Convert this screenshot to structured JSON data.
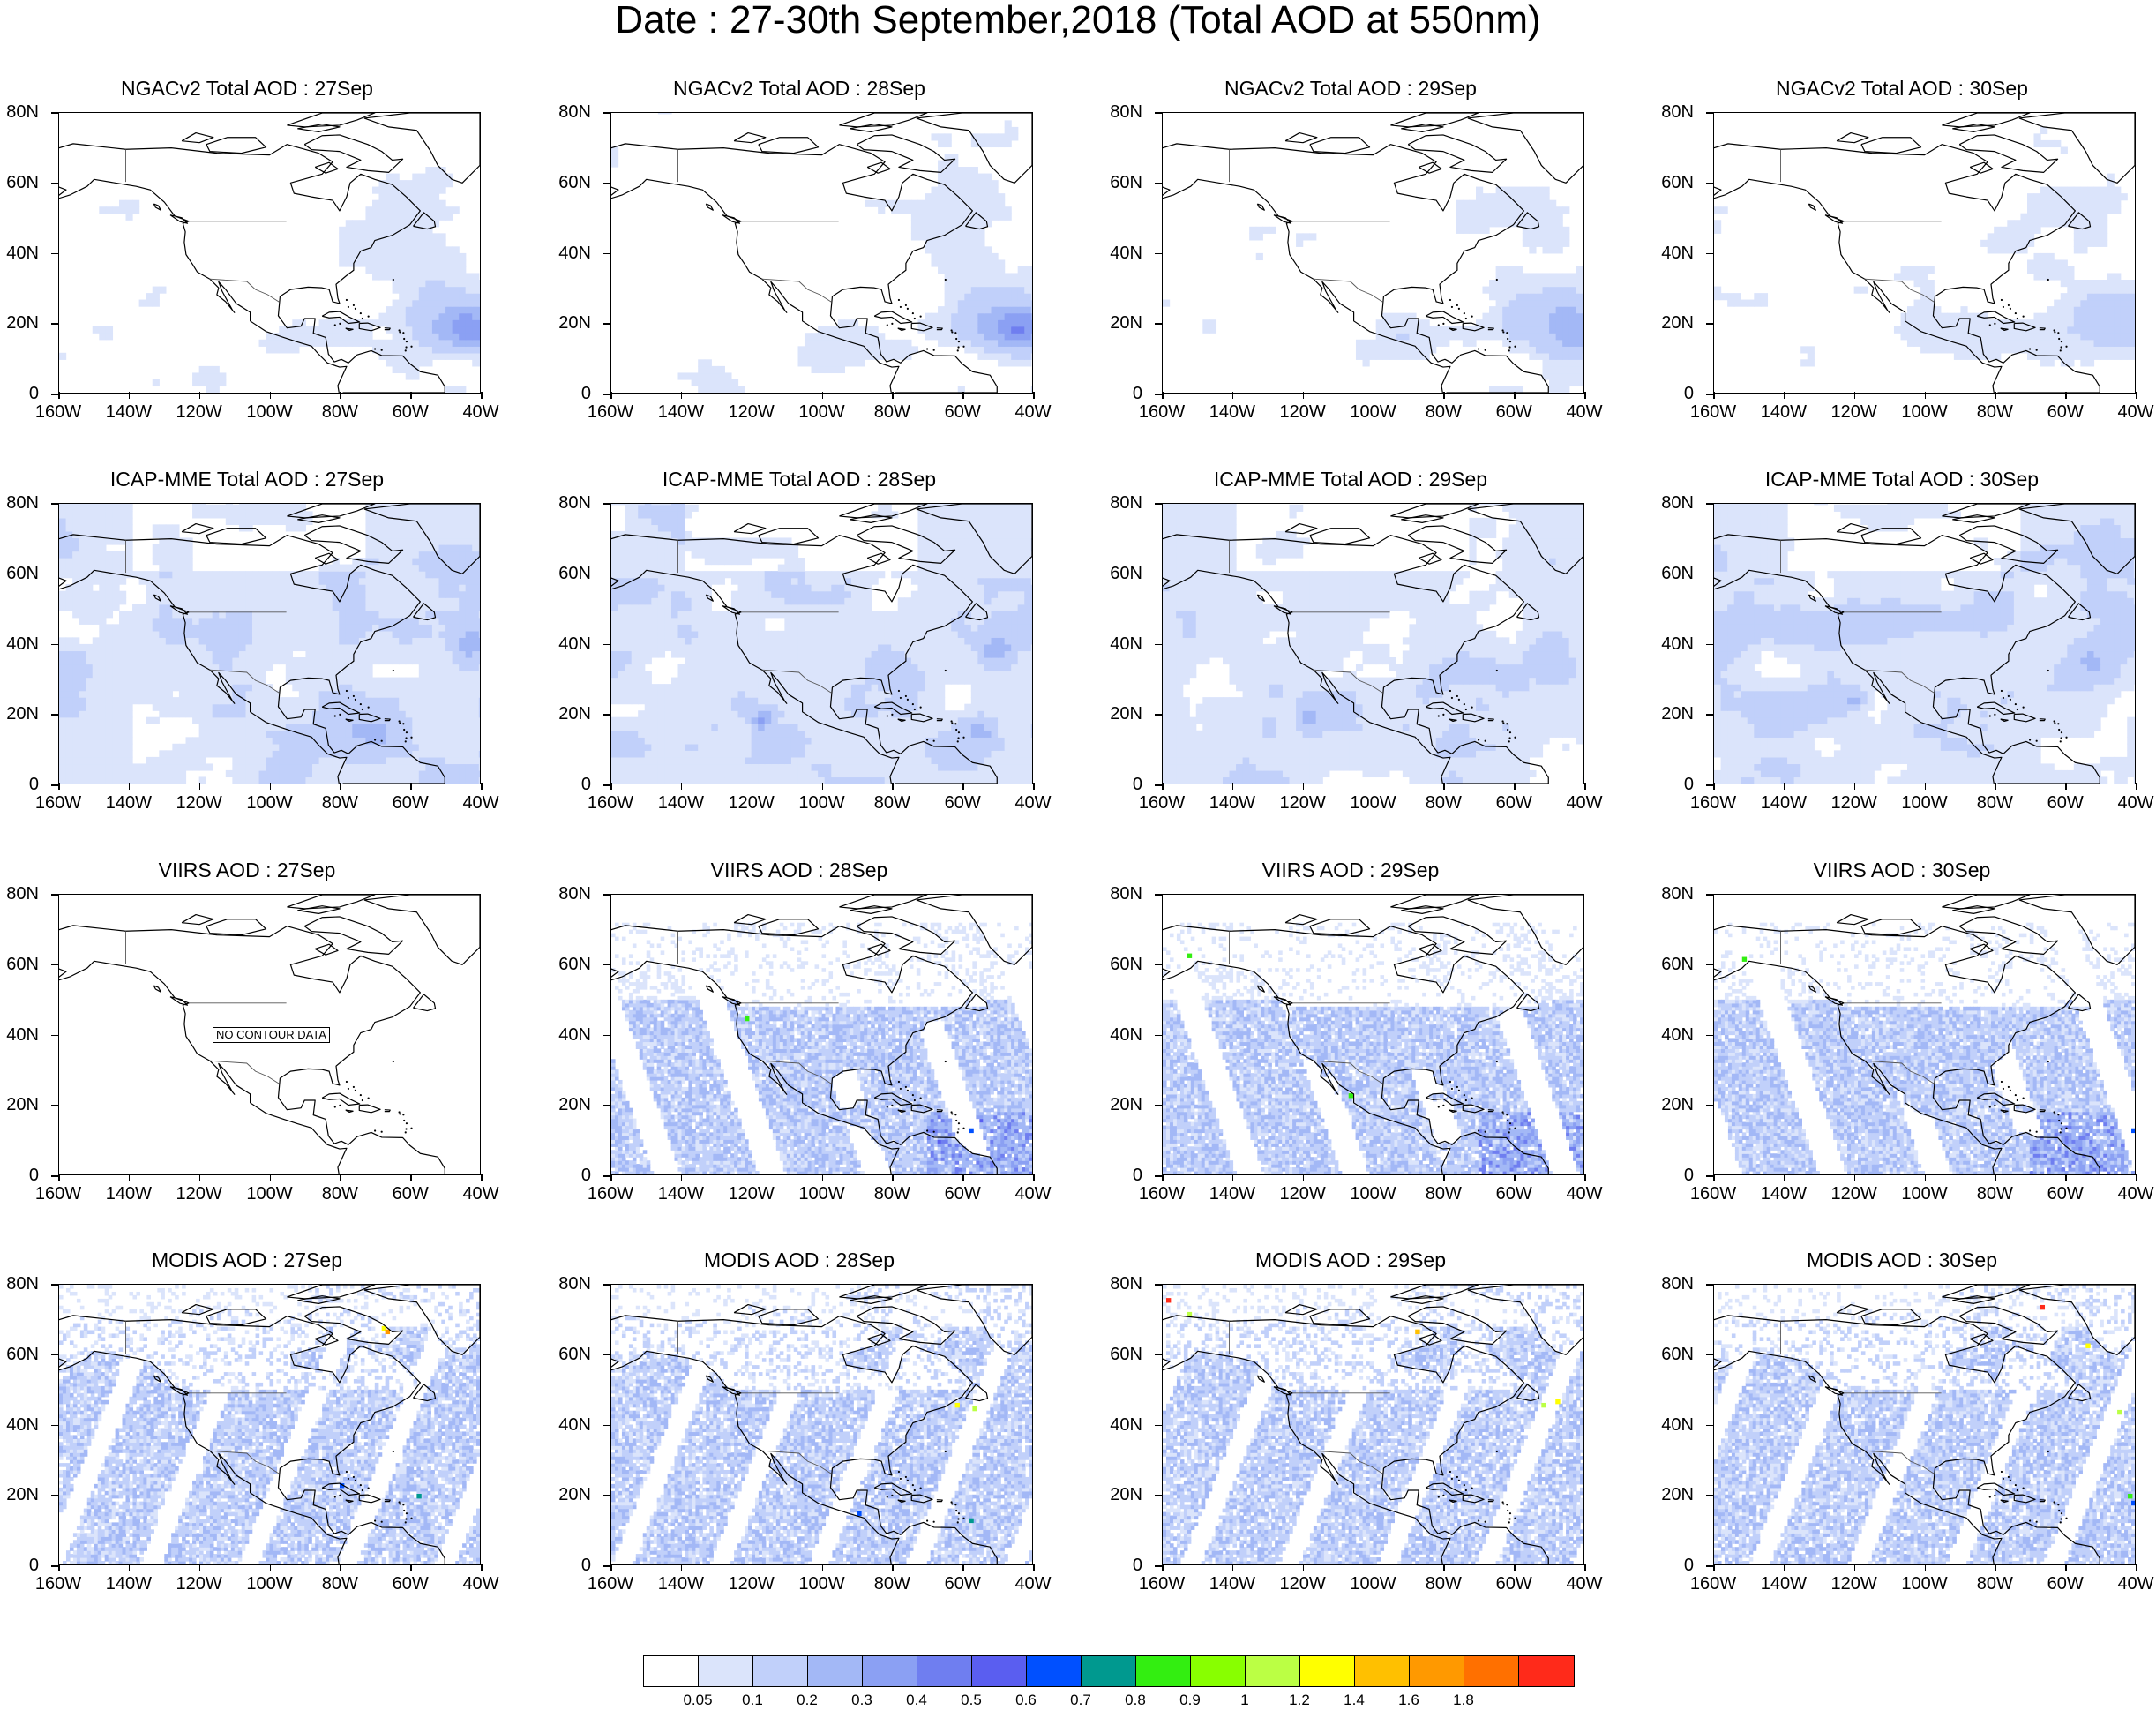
{
  "title": "Date : 27-30th September,2018 (Total AOD at 550nm)",
  "map": {
    "lat_labels": [
      "80N",
      "60N",
      "40N",
      "20N",
      "0"
    ],
    "lat_values": [
      80,
      60,
      40,
      20,
      0
    ],
    "lon_labels": [
      "160W",
      "140W",
      "120W",
      "100W",
      "80W",
      "60W",
      "40W"
    ],
    "lon_values": [
      -160,
      -140,
      -120,
      -100,
      -80,
      -60,
      -40
    ],
    "lat_range": [
      0,
      80
    ],
    "lon_range": [
      -160,
      -40
    ]
  },
  "panels": [
    {
      "title": "NGACv2 Total AOD : 27Sep",
      "style": "ngac",
      "day": 27
    },
    {
      "title": "NGACv2 Total AOD : 28Sep",
      "style": "ngac",
      "day": 28
    },
    {
      "title": "NGACv2 Total AOD : 29Sep",
      "style": "ngac",
      "day": 29
    },
    {
      "title": "NGACv2 Total AOD : 30Sep",
      "style": "ngac",
      "day": 30
    },
    {
      "title": "ICAP-MME Total AOD : 27Sep",
      "style": "icap",
      "day": 27
    },
    {
      "title": "ICAP-MME Total AOD : 28Sep",
      "style": "icap",
      "day": 28
    },
    {
      "title": "ICAP-MME Total AOD : 29Sep",
      "style": "icap",
      "day": 29
    },
    {
      "title": "ICAP-MME Total AOD : 30Sep",
      "style": "icap",
      "day": 30
    },
    {
      "title": "VIIRS AOD : 27Sep",
      "style": "empty",
      "day": 27,
      "notice": "NO CONTOUR DATA"
    },
    {
      "title": "VIIRS AOD : 28Sep",
      "style": "viirs",
      "day": 28
    },
    {
      "title": "VIIRS AOD : 29Sep",
      "style": "viirs",
      "day": 29
    },
    {
      "title": "VIIRS AOD : 30Sep",
      "style": "viirs",
      "day": 30
    },
    {
      "title": "MODIS AOD : 27Sep",
      "style": "modis",
      "day": 27
    },
    {
      "title": "MODIS AOD : 28Sep",
      "style": "modis",
      "day": 28
    },
    {
      "title": "MODIS AOD : 29Sep",
      "style": "modis",
      "day": 29
    },
    {
      "title": "MODIS AOD : 30Sep",
      "style": "modis",
      "day": 30
    }
  ],
  "colorbar": {
    "colors": [
      "#ffffff",
      "#dbe4fb",
      "#c1d0fa",
      "#a3b8f6",
      "#8ba0f3",
      "#6f7ef0",
      "#5a5ef0",
      "#0050ff",
      "#00998f",
      "#33ee11",
      "#88ff00",
      "#bbff44",
      "#ffff00",
      "#ffc000",
      "#ff9900",
      "#ff7000",
      "#ff2a1a"
    ],
    "labels": [
      "0.05",
      "0.1",
      "0.2",
      "0.3",
      "0.4",
      "0.5",
      "0.6",
      "0.7",
      "0.8",
      "0.9",
      "1",
      "1.2",
      "1.4",
      "1.6",
      "1.8"
    ]
  }
}
